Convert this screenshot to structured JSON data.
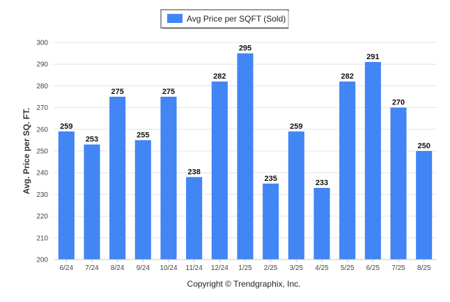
{
  "chart_data": {
    "type": "bar",
    "categories": [
      "6/24",
      "7/24",
      "8/24",
      "9/24",
      "10/24",
      "11/24",
      "12/24",
      "1/25",
      "2/25",
      "3/25",
      "4/25",
      "5/25",
      "6/25",
      "7/25",
      "8/25"
    ],
    "series": [
      {
        "name": "Avg Price per SQFT (Sold)",
        "values": [
          259,
          253,
          275,
          255,
          275,
          238,
          282,
          295,
          235,
          259,
          233,
          282,
          291,
          270,
          250
        ]
      }
    ],
    "xlabel": "",
    "ylabel": "Avg. Price per SQ. FT.",
    "ylim": [
      200,
      300
    ],
    "yticks": [
      200,
      210,
      220,
      230,
      240,
      250,
      260,
      270,
      280,
      290,
      300
    ],
    "grid": true,
    "legend_position": "top-center",
    "data_labels": true,
    "bar_color": "#4285F4"
  },
  "footer": {
    "copyright": "Copyright © Trendgraphix, Inc."
  }
}
